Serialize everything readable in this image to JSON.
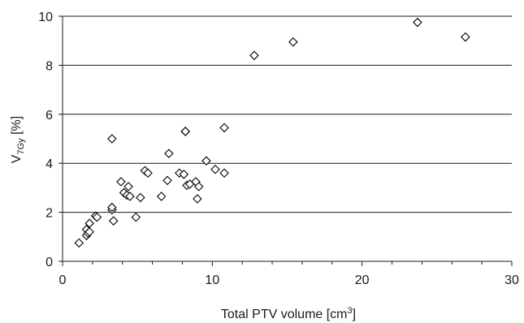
{
  "chart_data": {
    "type": "scatter",
    "title": "",
    "xlabel": "Total PTV volume [cm3]",
    "xlabel_parts": {
      "main": "Total PTV volume [cm",
      "sup": "3",
      "end": "]"
    },
    "ylabel": "V7Gy [%]",
    "ylabel_parts": {
      "main": "V",
      "sub": "7Gy",
      "end": " [%]"
    },
    "xlim": [
      0,
      30
    ],
    "ylim": [
      0,
      10
    ],
    "x_ticks": [
      0,
      10,
      20,
      30
    ],
    "x_tick_labels": [
      "0",
      "10",
      "20",
      "30"
    ],
    "y_ticks": [
      0,
      2,
      4,
      6,
      8,
      10
    ],
    "y_tick_labels": [
      "0",
      "2",
      "4",
      "6",
      "8",
      "10"
    ],
    "grid": "horizontal",
    "marker": "diamond-open",
    "marker_color": "#000000",
    "series": [
      {
        "points": [
          [
            1.1,
            0.75
          ],
          [
            1.6,
            1.05
          ],
          [
            1.6,
            1.3
          ],
          [
            1.7,
            1.15
          ],
          [
            1.8,
            1.2
          ],
          [
            1.8,
            1.55
          ],
          [
            2.2,
            1.85
          ],
          [
            2.3,
            1.8
          ],
          [
            3.3,
            5.0
          ],
          [
            3.3,
            2.1
          ],
          [
            3.3,
            2.2
          ],
          [
            3.4,
            1.65
          ],
          [
            3.9,
            3.25
          ],
          [
            4.1,
            2.8
          ],
          [
            4.3,
            2.7
          ],
          [
            4.4,
            3.05
          ],
          [
            4.5,
            2.65
          ],
          [
            4.9,
            1.8
          ],
          [
            5.2,
            2.6
          ],
          [
            5.5,
            3.7
          ],
          [
            5.7,
            3.6
          ],
          [
            6.6,
            2.65
          ],
          [
            7.0,
            3.3
          ],
          [
            7.1,
            4.4
          ],
          [
            7.8,
            3.6
          ],
          [
            8.1,
            3.55
          ],
          [
            8.2,
            5.3
          ],
          [
            8.2,
            5.3
          ],
          [
            8.3,
            3.1
          ],
          [
            8.5,
            3.15
          ],
          [
            8.9,
            3.25
          ],
          [
            9.0,
            2.55
          ],
          [
            9.1,
            3.05
          ],
          [
            9.6,
            4.1
          ],
          [
            10.2,
            3.75
          ],
          [
            10.8,
            5.45
          ],
          [
            10.8,
            3.6
          ],
          [
            12.8,
            8.4
          ],
          [
            15.4,
            8.95
          ],
          [
            23.7,
            9.75
          ],
          [
            26.9,
            9.15
          ]
        ]
      }
    ]
  }
}
